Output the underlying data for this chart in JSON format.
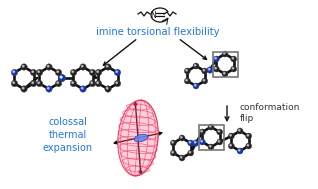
{
  "title_text": "imine torsional flexibility",
  "title_color": "#2277dd",
  "title_fontsize": 7.2,
  "conformation_text": "conformation\nflip",
  "conformation_color": "#333333",
  "conformation_fontsize": 6.5,
  "colossal_text": "colossal\nthermal\nexpansion",
  "colossal_color": "#2277dd",
  "colossal_fontsize": 7.0,
  "bg_color": "#ffffff",
  "ellipsoid_face_color": "#ff6688",
  "ellipsoid_edge_color": "#ee2255",
  "bond_color": "#111111",
  "N_color": "#1133bb",
  "C_color": "#222222",
  "H_color": "#888888"
}
